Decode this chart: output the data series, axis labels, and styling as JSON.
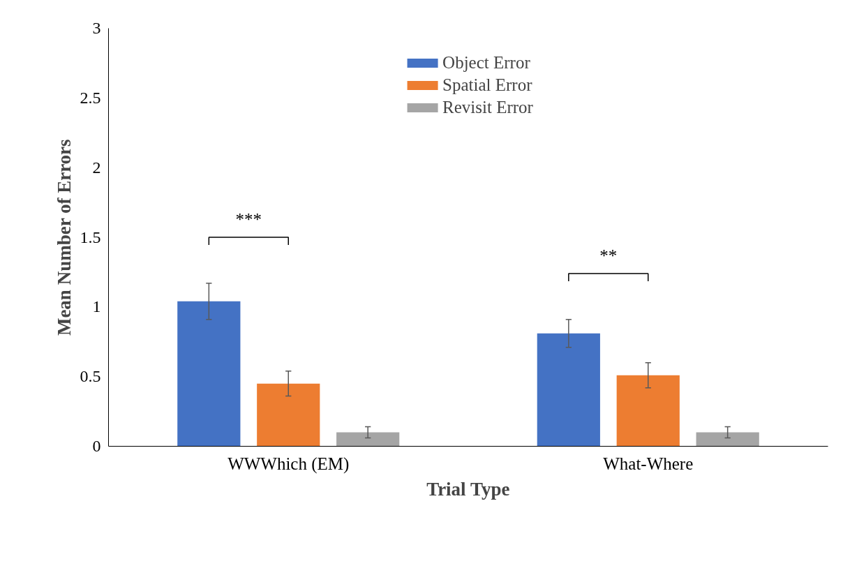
{
  "chart_data": {
    "type": "bar",
    "xlabel": "Trial Type",
    "ylabel": "Mean Number of Errors",
    "categories": [
      "WWWhich (EM)",
      "What-Where"
    ],
    "series": [
      {
        "name": "Object Error",
        "color": "#4472c4",
        "values": [
          1.04,
          0.81
        ],
        "errors": [
          0.13,
          0.1
        ]
      },
      {
        "name": "Spatial Error",
        "color": "#ed7d31",
        "values": [
          0.45,
          0.51
        ],
        "errors": [
          0.09,
          0.09
        ]
      },
      {
        "name": "Revisit Error",
        "color": "#a5a5a5",
        "values": [
          0.1,
          0.1
        ],
        "errors": [
          0.04,
          0.04
        ]
      }
    ],
    "ylim": [
      0,
      3
    ],
    "yticks": [
      0,
      {
        "value": 0.5,
        "label": "0.5"
      },
      1,
      {
        "value": 1.5,
        "label": "1.5"
      },
      2,
      {
        "value": 2.5,
        "label": "2.5"
      },
      3
    ],
    "annotations": [
      "***",
      "**"
    ],
    "grid": false,
    "legend": "top"
  }
}
